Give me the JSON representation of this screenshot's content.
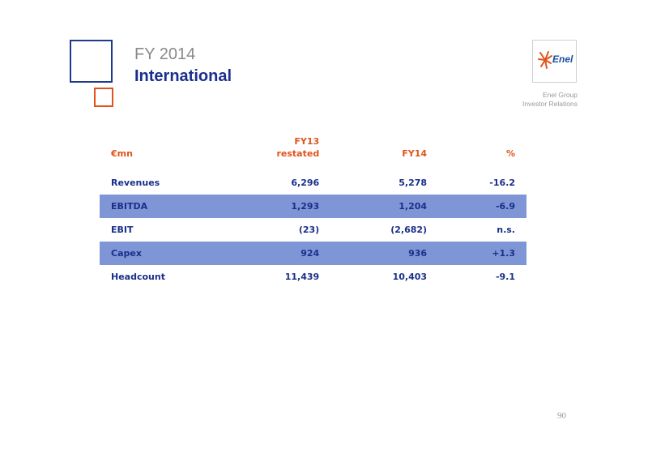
{
  "header": {
    "kicker": "FY 2014",
    "title": "International"
  },
  "logo": {
    "name": "Enel",
    "icon": "enel-logo-icon",
    "company_line": "Enel Group",
    "department_line": "Investor Relations"
  },
  "table": {
    "columns": [
      "€mn",
      "FY13\nrestated",
      "FY14",
      "%"
    ],
    "rows": [
      {
        "label": "Revenues",
        "fy13": "6,296",
        "fy14": "5,278",
        "pct": "-16.2"
      },
      {
        "label": "EBITDA",
        "fy13": "1,293",
        "fy14": "1,204",
        "pct": "-6.9"
      },
      {
        "label": "EBIT",
        "fy13": "(23)",
        "fy14": "(2,682)",
        "pct": "n.s."
      },
      {
        "label": "Capex",
        "fy13": "924",
        "fy14": "936",
        "pct": "+1.3"
      },
      {
        "label": "Headcount",
        "fy13": "11,439",
        "fy14": "10,403",
        "pct": "-9.1"
      }
    ]
  },
  "colors": {
    "title_blue": "#1a2f8a",
    "accent_orange": "#e0541c",
    "row_shade": "#7f96d6"
  },
  "page_number": "90"
}
